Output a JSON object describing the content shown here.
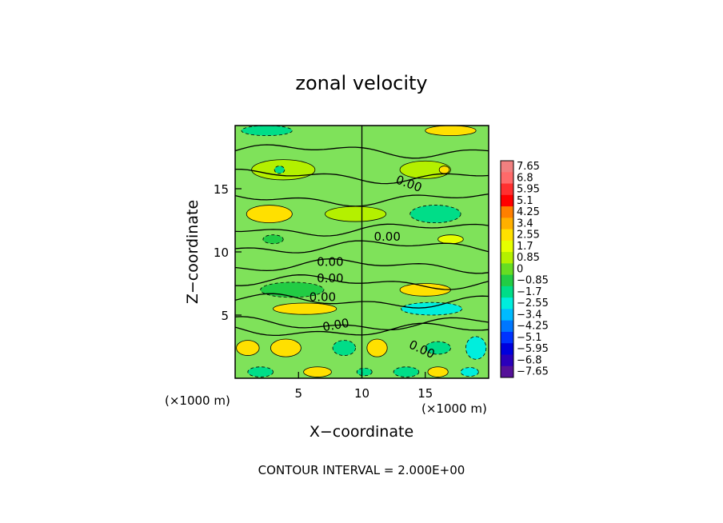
{
  "chart_data": {
    "type": "heatmap",
    "title": "zonal velocity",
    "xlabel": "X−coordinate",
    "ylabel": "Z−coordinate",
    "x_unit_left": "(×1000 m)",
    "x_unit_right": "(×1000 m)",
    "xlim": [
      0,
      20
    ],
    "ylim": [
      0,
      20
    ],
    "x_ticks": [
      5,
      10,
      15
    ],
    "y_ticks": [
      5,
      10,
      15
    ],
    "x_tick_labels": [
      "5",
      "10",
      "15"
    ],
    "y_tick_labels": [
      "5",
      "10",
      "15"
    ],
    "footer": "CONTOUR INTERVAL = 2.000E+00",
    "contour_labels": [
      {
        "text": "0.00",
        "x": 13.6,
        "y": 15.1,
        "angle": 20
      },
      {
        "text": "0.00",
        "x": 12.0,
        "y": 10.9,
        "angle": 0
      },
      {
        "text": "0.00",
        "x": 7.5,
        "y": 8.9,
        "angle": 0
      },
      {
        "text": "0.00",
        "x": 7.5,
        "y": 7.6,
        "angle": 0
      },
      {
        "text": "0.00",
        "x": 6.9,
        "y": 6.1,
        "angle": 0
      },
      {
        "text": "0.00",
        "x": 8.0,
        "y": 3.9,
        "angle": -10
      },
      {
        "text": "0.00",
        "x": 14.6,
        "y": 2.0,
        "angle": 25
      }
    ],
    "colorbar": {
      "labels": [
        "7.65",
        "6.8",
        "5.95",
        "5.1",
        "4.25",
        "3.4",
        "2.55",
        "1.7",
        "0.85",
        "0",
        "−0.85",
        "−1.7",
        "−2.55",
        "−3.4",
        "−4.25",
        "−5.1",
        "−5.95",
        "−6.8",
        "−7.65"
      ],
      "colors": [
        "#f08080",
        "#ff6a6a",
        "#ff3030",
        "#ff0000",
        "#ff7f00",
        "#ffb000",
        "#ffe000",
        "#e6ff00",
        "#b4f000",
        "#66dd22",
        "#22cc44",
        "#00dd88",
        "#00eedd",
        "#00bbff",
        "#0077ff",
        "#0033ff",
        "#0000dd",
        "#2a00bb",
        "#551199"
      ]
    },
    "field": {
      "background": "#7fe25a",
      "rows": [
        {
          "z": 19.6,
          "cells": [
            {
              "x": 2.5,
              "w": 4.0,
              "h": 0.8,
              "value": -1.7
            },
            {
              "x": 17.0,
              "w": 4.0,
              "h": 0.8,
              "value": 2.55
            }
          ]
        },
        {
          "z": 16.5,
          "cells": [
            {
              "x": 3.8,
              "w": 5.0,
              "h": 1.6,
              "value": 0.85
            },
            {
              "x": 15.0,
              "w": 4.0,
              "h": 1.4,
              "value": 0.85
            },
            {
              "x": 3.5,
              "w": 0.8,
              "h": 0.6,
              "value": -1.7
            },
            {
              "x": 16.5,
              "w": 0.8,
              "h": 0.6,
              "value": 2.55
            }
          ]
        },
        {
          "z": 13.0,
          "cells": [
            {
              "x": 2.7,
              "w": 3.6,
              "h": 1.4,
              "value": 2.55
            },
            {
              "x": 9.5,
              "w": 4.8,
              "h": 1.2,
              "value": 0.85
            },
            {
              "x": 15.8,
              "w": 4.0,
              "h": 1.4,
              "value": -1.7
            }
          ]
        },
        {
          "z": 11.0,
          "cells": [
            {
              "x": 3.0,
              "w": 1.6,
              "h": 0.7,
              "value": -0.85
            },
            {
              "x": 17.0,
              "w": 2.0,
              "h": 0.7,
              "value": 1.7
            }
          ]
        },
        {
          "z": 7.0,
          "cells": [
            {
              "x": 4.5,
              "w": 5.0,
              "h": 1.2,
              "value": -0.85
            },
            {
              "x": 15.0,
              "w": 4.0,
              "h": 1.0,
              "value": 2.55
            }
          ]
        },
        {
          "z": 5.5,
          "cells": [
            {
              "x": 5.5,
              "w": 5.0,
              "h": 0.9,
              "value": 2.55
            },
            {
              "x": 15.5,
              "w": 4.8,
              "h": 1.0,
              "value": -2.55
            }
          ]
        },
        {
          "z": 2.4,
          "cells": [
            {
              "x": 1.0,
              "w": 1.8,
              "h": 1.2,
              "value": 2.55
            },
            {
              "x": 4.0,
              "w": 2.4,
              "h": 1.4,
              "value": 2.55
            },
            {
              "x": 8.6,
              "w": 1.8,
              "h": 1.2,
              "value": -1.7
            },
            {
              "x": 11.2,
              "w": 1.6,
              "h": 1.4,
              "value": 2.55
            },
            {
              "x": 16.0,
              "w": 2.0,
              "h": 1.0,
              "value": -1.7
            },
            {
              "x": 19.0,
              "w": 1.6,
              "h": 1.8,
              "value": -2.55
            }
          ]
        },
        {
          "z": 0.5,
          "cells": [
            {
              "x": 2.0,
              "w": 2.0,
              "h": 0.8,
              "value": -1.7
            },
            {
              "x": 6.5,
              "w": 2.2,
              "h": 0.8,
              "value": 2.55
            },
            {
              "x": 10.2,
              "w": 1.2,
              "h": 0.6,
              "value": -1.7
            },
            {
              "x": 13.5,
              "w": 2.0,
              "h": 0.8,
              "value": -1.7
            },
            {
              "x": 16.0,
              "w": 1.6,
              "h": 0.8,
              "value": 2.55
            },
            {
              "x": 18.5,
              "w": 1.4,
              "h": 0.7,
              "value": -2.55
            }
          ]
        }
      ],
      "contours_z": [
        18.0,
        16.0,
        14.2,
        11.8,
        10.4,
        8.9,
        7.6,
        6.1,
        4.3,
        3.8
      ]
    }
  }
}
